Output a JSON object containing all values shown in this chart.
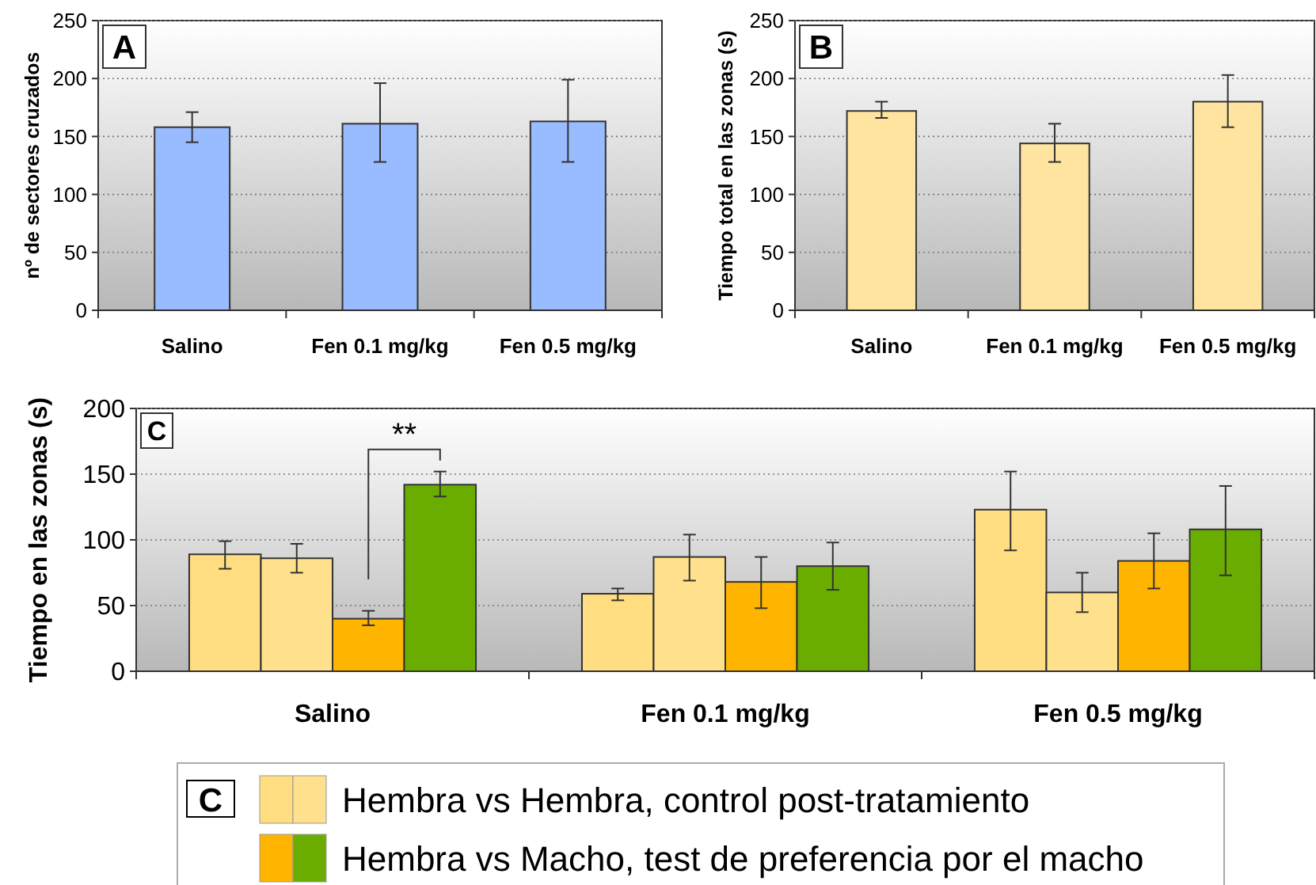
{
  "chart_data": [
    {
      "type": "bar",
      "title": "A",
      "ylabel": "nº de sectores cruzados",
      "categories": [
        "Salino",
        "Fen 0.1 mg/kg",
        "Fen 0.5 mg/kg"
      ],
      "series": [
        {
          "color": "#99bbff",
          "values": [
            158,
            161,
            163
          ],
          "errors": [
            [
              145,
              171
            ],
            [
              128,
              196
            ],
            [
              128,
              199
            ]
          ]
        }
      ],
      "ylim": [
        0,
        250
      ],
      "yticks": [
        0,
        50,
        100,
        150,
        200,
        250
      ],
      "grid": "y"
    },
    {
      "type": "bar",
      "title": "B",
      "ylabel": "Tiempo total en las zonas (s)",
      "categories": [
        "Salino",
        "Fen 0.1 mg/kg",
        "Fen 0.5 mg/kg"
      ],
      "series": [
        {
          "color": "#ffe4a0",
          "values": [
            172,
            144,
            180
          ],
          "errors": [
            [
              166,
              180
            ],
            [
              128,
              161
            ],
            [
              158,
              203
            ]
          ]
        }
      ],
      "ylim": [
        0,
        250
      ],
      "yticks": [
        0,
        50,
        100,
        150,
        200,
        250
      ],
      "grid": "y"
    },
    {
      "type": "bar",
      "title": "C",
      "ylabel": "Tiempo en las zonas (s)",
      "legend_title": "C",
      "categories": [
        "Salino",
        "Fen 0.1 mg/kg",
        "Fen 0.5 mg/kg"
      ],
      "series": [
        {
          "name": "Hembra vs Hembra, control post-tratamiento",
          "color": "#ffdd80",
          "values": [
            89,
            59,
            123
          ],
          "errors": [
            [
              78,
              99
            ],
            [
              54,
              63
            ],
            [
              92,
              152
            ]
          ]
        },
        {
          "color": "#ffe08c",
          "values": [
            86,
            87,
            60
          ],
          "errors": [
            [
              75,
              97
            ],
            [
              69,
              104
            ],
            [
              45,
              75
            ]
          ]
        },
        {
          "name": "Hembra vs Macho, test de preferencia por el macho",
          "color": "#ffb400",
          "values": [
            40,
            68,
            84
          ],
          "errors": [
            [
              35,
              46
            ],
            [
              48,
              87
            ],
            [
              63,
              105
            ]
          ]
        },
        {
          "color": "#6aad00",
          "values": [
            142,
            80,
            108
          ],
          "errors": [
            [
              133,
              152
            ],
            [
              62,
              98
            ],
            [
              73,
              141
            ]
          ]
        }
      ],
      "ylim": [
        0,
        200
      ],
      "yticks": [
        0,
        50,
        100,
        150,
        200
      ],
      "grid": "y",
      "legend": "bottom",
      "annotations": [
        "**"
      ]
    }
  ]
}
